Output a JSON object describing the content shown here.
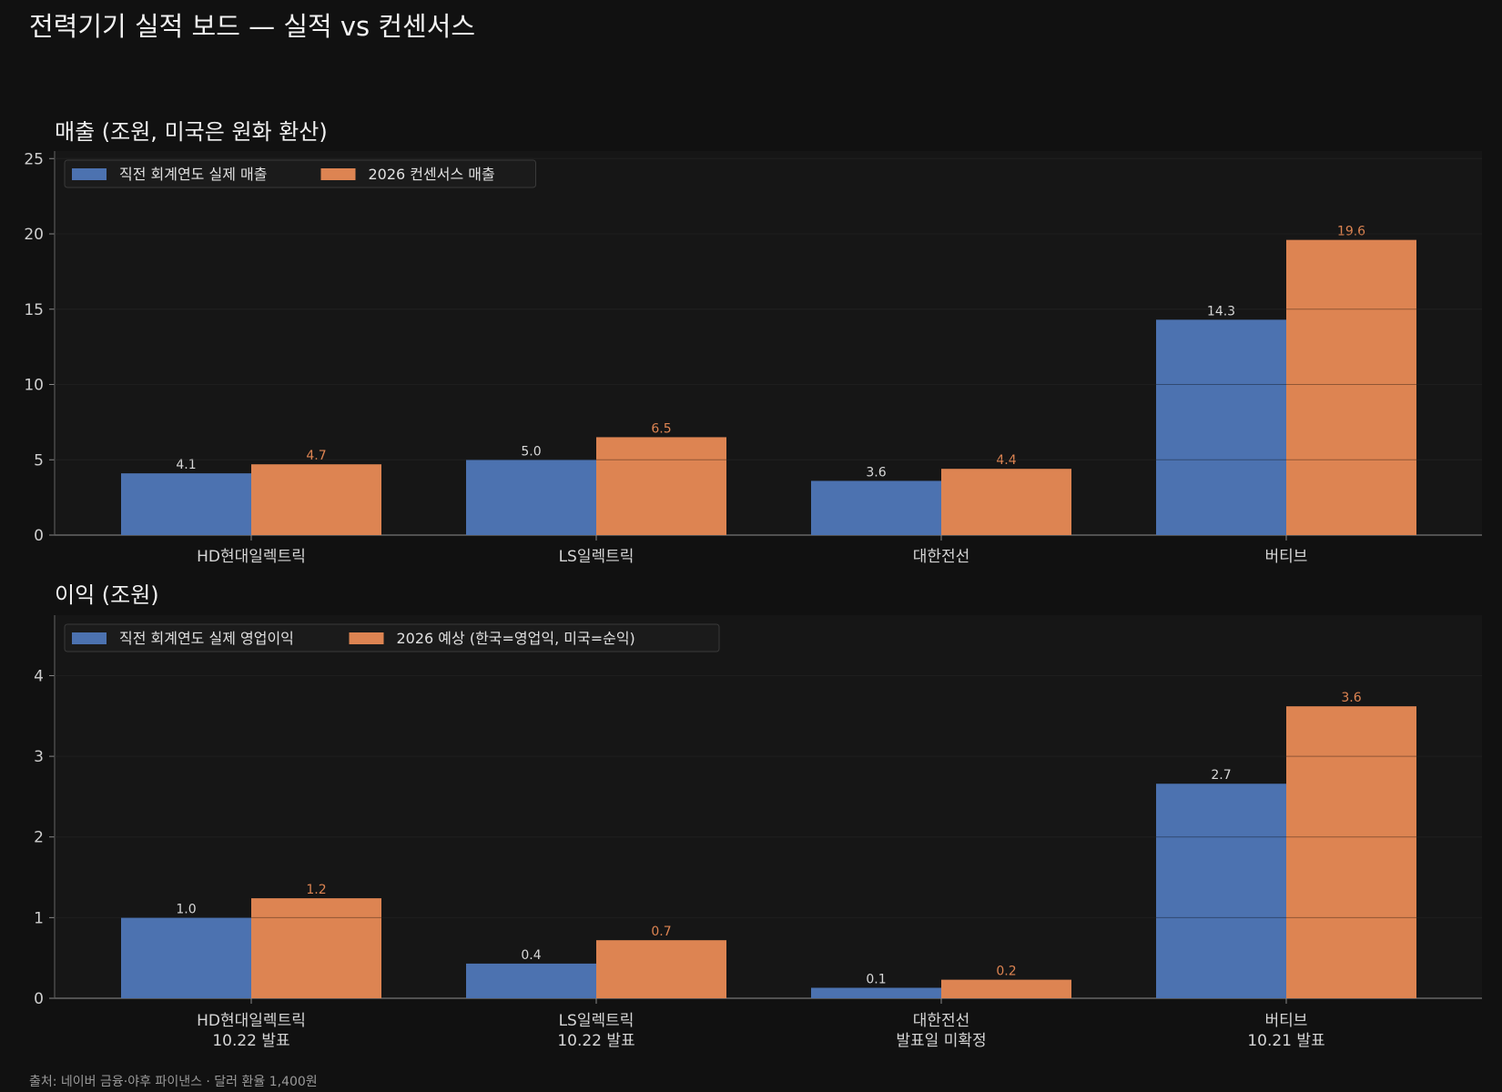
{
  "title": "전력기기 실적 보드 — 실적 vs 컨센서스",
  "footer": "출처: 네이버 금융·야후 파이낸스 · 달러 환율 1,400원",
  "colors": {
    "background": "#111111",
    "panel": "#161616",
    "actual": "#4c72b0",
    "forecast": "#dd8452",
    "grid": "#2e2e2e"
  },
  "chart_data": [
    {
      "type": "bar",
      "title": "매출 (조원, 미국은 원화 환산)",
      "categories": [
        [
          "HD현대일렉트릭"
        ],
        [
          "LS일렉트릭"
        ],
        [
          "대한전선"
        ],
        [
          "버티브"
        ]
      ],
      "series": [
        {
          "name": "직전 회계연도 실제 매출",
          "values": [
            4.1,
            5.0,
            3.6,
            14.3
          ],
          "labels": [
            "4.1",
            "5.0",
            "3.6",
            "14.3"
          ],
          "color": "#4c72b0",
          "label_color": "#d8d8d8"
        },
        {
          "name": "2026 컨센서스 매출",
          "values": [
            4.7,
            6.5,
            4.4,
            19.6
          ],
          "labels": [
            "4.7",
            "6.5",
            "4.4",
            "19.6"
          ],
          "color": "#dd8452",
          "label_color": "#dd8452"
        }
      ],
      "ylim": [
        0,
        25.5
      ],
      "yticks": [
        0,
        5,
        10,
        15,
        20,
        25
      ],
      "grid": true,
      "legend_position": "top-left"
    },
    {
      "type": "bar",
      "title": "이익 (조원)",
      "categories": [
        [
          "HD현대일렉트릭",
          "10.22 발표"
        ],
        [
          "LS일렉트릭",
          "10.22 발표"
        ],
        [
          "대한전선",
          "발표일 미확정"
        ],
        [
          "버티브",
          "10.21 발표"
        ]
      ],
      "series": [
        {
          "name": "직전 회계연도 실제 영업이익",
          "values": [
            1.0,
            0.43,
            0.13,
            2.66
          ],
          "labels": [
            "1.0",
            "0.4",
            "0.1",
            "2.7"
          ],
          "color": "#4c72b0",
          "label_color": "#d8d8d8"
        },
        {
          "name": "2026 예상 (한국=영업익, 미국=순익)",
          "values": [
            1.24,
            0.72,
            0.23,
            3.62
          ],
          "labels": [
            "1.2",
            "0.7",
            "0.2",
            "3.6"
          ],
          "color": "#dd8452",
          "label_color": "#dd8452"
        }
      ],
      "ylim": [
        0,
        4.75
      ],
      "yticks": [
        0,
        1,
        2,
        3,
        4
      ],
      "grid": true,
      "legend_position": "top-left"
    }
  ]
}
